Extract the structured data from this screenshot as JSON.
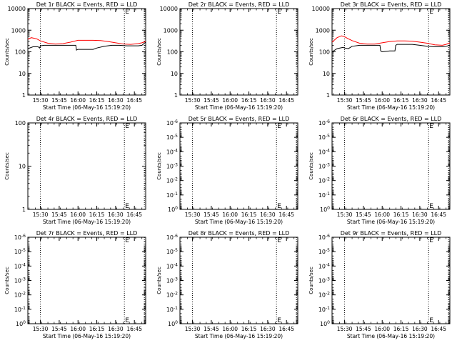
{
  "chart_data": [
    {
      "type": "line",
      "title": "Det 1r BLACK = Events, RED = LLD",
      "xlabel": "Start Time (06-May-16 15:19:20)",
      "ylabel": "Counts/sec",
      "scale": "log",
      "ylim": [
        1,
        10000
      ],
      "yticks": [
        "1",
        "10",
        "100",
        "1000",
        "10000"
      ],
      "xlim": [
        15.333,
        16.9
      ],
      "xticks": [
        "15:30",
        "15:45",
        "16:00",
        "16:15",
        "16:30",
        "16:45"
      ],
      "dotted_lines_x": [
        15.5,
        16.617,
        16.883
      ],
      "markers": [
        "E"
      ],
      "series": [
        {
          "color": "#000000",
          "x": [
            15.333,
            15.4,
            15.47,
            15.49,
            15.5,
            15.55,
            15.7,
            15.8,
            15.85,
            15.9,
            15.95,
            15.97,
            15.98,
            16.0,
            16.05,
            16.15,
            16.2,
            16.25,
            16.35,
            16.45,
            16.55,
            16.65,
            16.72,
            16.8,
            16.85,
            16.9
          ],
          "values": [
            140,
            170,
            170,
            150,
            190,
            200,
            200,
            200,
            200,
            200,
            200,
            200,
            120,
            130,
            130,
            130,
            130,
            150,
            180,
            200,
            200,
            190,
            190,
            190,
            200,
            280
          ]
        },
        {
          "color": "#ff0000",
          "x": [
            15.333,
            15.38,
            15.45,
            15.5,
            15.6,
            15.7,
            15.8,
            15.9,
            16.0,
            16.1,
            16.2,
            16.3,
            16.4,
            16.5,
            16.6,
            16.7,
            16.8,
            16.85,
            16.9
          ],
          "values": [
            380,
            450,
            400,
            320,
            250,
            230,
            240,
            280,
            340,
            340,
            340,
            330,
            300,
            260,
            230,
            220,
            240,
            260,
            300
          ]
        }
      ]
    },
    {
      "type": "line",
      "title": "Det 2r BLACK = Events, RED = LLD",
      "xlabel": "Start Time (06-May-16 15:19:20)",
      "ylabel": "Counts/sec",
      "scale": "log",
      "ylim": [
        1,
        10000
      ],
      "yticks": [
        "1",
        "10",
        "100",
        "1000",
        "10000"
      ],
      "xlim": [
        15.333,
        16.9
      ],
      "xticks": [
        "15:30",
        "15:45",
        "16:00",
        "16:15",
        "16:30",
        "16:45"
      ],
      "dotted_lines_x": [
        15.5,
        16.617,
        16.883
      ],
      "markers": [
        "E"
      ],
      "series": []
    },
    {
      "type": "line",
      "title": "Det 3r BLACK = Events, RED = LLD",
      "xlabel": "Start Time (06-May-16 15:19:20)",
      "ylabel": "Counts/sec",
      "scale": "log",
      "ylim": [
        1,
        10000
      ],
      "yticks": [
        "1",
        "10",
        "100",
        "1000",
        "10000"
      ],
      "xlim": [
        15.333,
        16.9
      ],
      "xticks": [
        "15:30",
        "15:45",
        "16:00",
        "16:15",
        "16:30",
        "16:45"
      ],
      "dotted_lines_x": [
        15.5,
        16.617,
        16.883
      ],
      "markers": [
        "E"
      ],
      "series": [
        {
          "color": "#000000",
          "x": [
            15.333,
            15.4,
            15.48,
            15.5,
            15.55,
            15.6,
            15.7,
            15.8,
            15.9,
            15.95,
            15.97,
            15.98,
            16.0,
            16.1,
            16.17,
            16.18,
            16.2,
            16.3,
            16.4,
            16.5,
            16.6,
            16.7,
            16.8,
            16.85,
            16.9
          ],
          "values": [
            100,
            140,
            160,
            150,
            140,
            180,
            200,
            200,
            200,
            200,
            200,
            110,
            100,
            110,
            110,
            200,
            220,
            220,
            220,
            200,
            180,
            170,
            170,
            180,
            200
          ]
        },
        {
          "color": "#ff0000",
          "x": [
            15.333,
            15.4,
            15.46,
            15.5,
            15.55,
            15.6,
            15.7,
            15.8,
            15.9,
            16.0,
            16.1,
            16.2,
            16.3,
            16.4,
            16.5,
            16.6,
            16.7,
            16.8,
            16.85,
            16.9
          ],
          "values": [
            280,
            450,
            550,
            500,
            400,
            330,
            250,
            230,
            230,
            260,
            300,
            320,
            320,
            310,
            280,
            250,
            210,
            200,
            220,
            260
          ]
        }
      ]
    },
    {
      "type": "line",
      "title": "Det 4r BLACK = Events, RED = LLD",
      "xlabel": "Start Time (06-May-16 15:19:20)",
      "ylabel": "Counts/sec",
      "scale": "log",
      "ylim": [
        1,
        100
      ],
      "yticks": [
        "1",
        "10",
        "100"
      ],
      "xlim": [
        15.333,
        16.9
      ],
      "xticks": [
        "15:30",
        "15:45",
        "16:00",
        "16:15",
        "16:30",
        "16:45"
      ],
      "dotted_lines_x": [
        15.5,
        16.617,
        16.883
      ],
      "markers": [
        "E",
        "E"
      ],
      "series": []
    },
    {
      "type": "line",
      "title": "Det 5r BLACK = Events, RED = LLD",
      "xlabel": "Start Time (06-May-16 15:19:20)",
      "ylabel": "Counts/sec",
      "scale": "log",
      "ylim": [
        1,
        1e-06
      ],
      "yticks": [
        "10^0",
        "10^-1",
        "10^-2",
        "10^-3",
        "10^-4",
        "10^-5",
        "10^-6"
      ],
      "xlim": [
        15.333,
        16.9
      ],
      "xticks": [
        "15:30",
        "15:45",
        "16:00",
        "16:15",
        "16:30",
        "16:45"
      ],
      "dotted_lines_x": [
        15.5,
        16.617,
        16.883
      ],
      "markers": [
        "E",
        "E"
      ],
      "series": []
    },
    {
      "type": "line",
      "title": "Det 6r BLACK = Events, RED = LLD",
      "xlabel": "Start Time (06-May-16 15:19:20)",
      "ylabel": "Counts/sec",
      "scale": "log",
      "ylim": [
        1,
        1e-06
      ],
      "yticks": [
        "10^0",
        "10^-1",
        "10^-2",
        "10^-3",
        "10^-4",
        "10^-5",
        "10^-6"
      ],
      "xlim": [
        15.333,
        16.9
      ],
      "xticks": [
        "15:30",
        "15:45",
        "16:00",
        "16:15",
        "16:30",
        "16:45"
      ],
      "dotted_lines_x": [
        15.5,
        16.617,
        16.883
      ],
      "markers": [
        "E",
        "E"
      ],
      "series": []
    },
    {
      "type": "line",
      "title": "Det 7r BLACK = Events, RED = LLD",
      "xlabel": "Start Time (06-May-16 15:19:20)",
      "ylabel": "Counts/sec",
      "scale": "log",
      "ylim": [
        1,
        1e-06
      ],
      "yticks": [
        "10^0",
        "10^-1",
        "10^-2",
        "10^-3",
        "10^-4",
        "10^-5",
        "10^-6"
      ],
      "xlim": [
        15.333,
        16.9
      ],
      "xticks": [
        "15:30",
        "15:45",
        "16:00",
        "16:15",
        "16:30",
        "16:45"
      ],
      "dotted_lines_x": [
        15.5,
        16.617,
        16.883
      ],
      "markers": [
        "E",
        "E"
      ],
      "series": []
    },
    {
      "type": "line",
      "title": "Det 8r BLACK = Events, RED = LLD",
      "xlabel": "Start Time (06-May-16 15:19:20)",
      "ylabel": "Counts/sec",
      "scale": "log",
      "ylim": [
        1,
        1e-06
      ],
      "yticks": [
        "10^0",
        "10^-1",
        "10^-2",
        "10^-3",
        "10^-4",
        "10^-5",
        "10^-6"
      ],
      "xlim": [
        15.333,
        16.9
      ],
      "xticks": [
        "15:30",
        "15:45",
        "16:00",
        "16:15",
        "16:30",
        "16:45"
      ],
      "dotted_lines_x": [
        15.5,
        16.617,
        16.883
      ],
      "markers": [
        "E",
        "E"
      ],
      "series": []
    },
    {
      "type": "line",
      "title": "Det 9r BLACK = Events, RED = LLD",
      "xlabel": "Start Time (06-May-16 15:19:20)",
      "ylabel": "Counts/sec",
      "scale": "log",
      "ylim": [
        1,
        1e-06
      ],
      "yticks": [
        "10^0",
        "10^-1",
        "10^-2",
        "10^-3",
        "10^-4",
        "10^-5",
        "10^-6"
      ],
      "xlim": [
        15.333,
        16.9
      ],
      "xticks": [
        "15:30",
        "15:45",
        "16:00",
        "16:15",
        "16:30",
        "16:45"
      ],
      "dotted_lines_x": [
        15.5,
        16.617,
        16.883
      ],
      "markers": [
        "E",
        "E"
      ],
      "series": []
    }
  ]
}
